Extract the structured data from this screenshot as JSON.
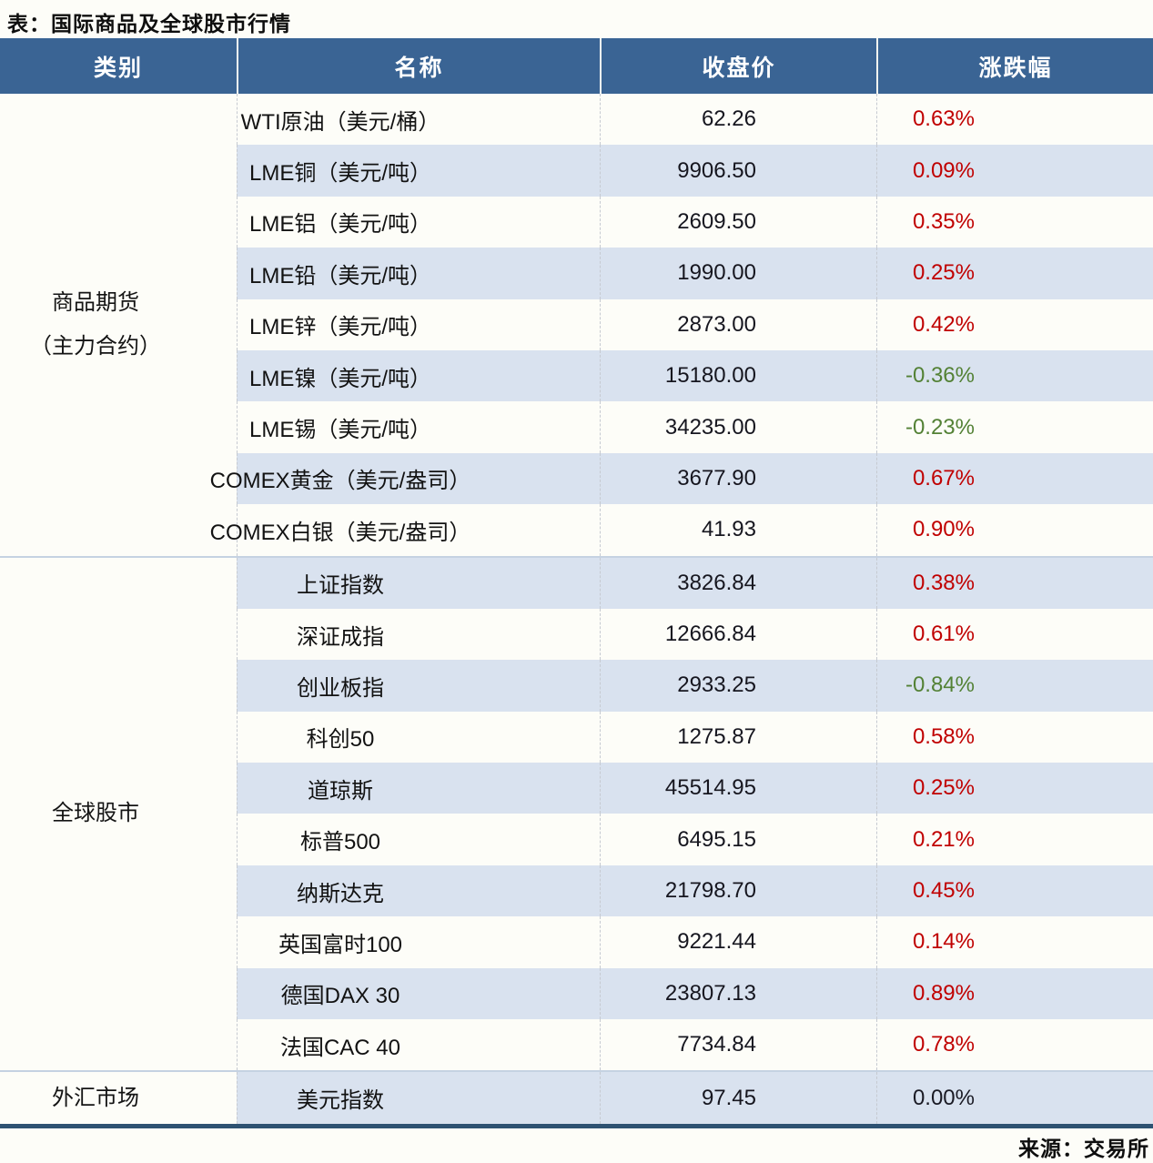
{
  "title": "表：国际商品及全球股市行情",
  "footer": {
    "source": "来源：交易所"
  },
  "colors": {
    "header_bg": "#3A6494",
    "band": "#D9E2EF",
    "up": "#C00000",
    "down": "#538135",
    "flat": "#1A1A24",
    "bottom_border": "#2E5272"
  },
  "table": {
    "columns": [
      "类别",
      "名称",
      "收盘价",
      "涨跌幅"
    ],
    "sections": [
      {
        "category_lines": [
          "商品期货",
          "（主力合约）"
        ],
        "rows": [
          {
            "name": "WTI原油（美元/桶）",
            "close": "62.26",
            "change": "0.63%",
            "direction": "up"
          },
          {
            "name": "LME铜（美元/吨）",
            "close": "9906.50",
            "change": "0.09%",
            "direction": "up"
          },
          {
            "name": "LME铝（美元/吨）",
            "close": "2609.50",
            "change": "0.35%",
            "direction": "up"
          },
          {
            "name": "LME铅（美元/吨）",
            "close": "1990.00",
            "change": "0.25%",
            "direction": "up"
          },
          {
            "name": "LME锌（美元/吨）",
            "close": "2873.00",
            "change": "0.42%",
            "direction": "up"
          },
          {
            "name": "LME镍（美元/吨）",
            "close": "15180.00",
            "change": "-0.36%",
            "direction": "down"
          },
          {
            "name": "LME锡（美元/吨）",
            "close": "34235.00",
            "change": "-0.23%",
            "direction": "down"
          },
          {
            "name": "COMEX黄金（美元/盎司）",
            "close": "3677.90",
            "change": "0.67%",
            "direction": "up"
          },
          {
            "name": "COMEX白银（美元/盎司）",
            "close": "41.93",
            "change": "0.90%",
            "direction": "up"
          }
        ]
      },
      {
        "category_lines": [
          "全球股市"
        ],
        "rows": [
          {
            "name": "上证指数",
            "close": "3826.84",
            "change": "0.38%",
            "direction": "up"
          },
          {
            "name": "深证成指",
            "close": "12666.84",
            "change": "0.61%",
            "direction": "up"
          },
          {
            "name": "创业板指",
            "close": "2933.25",
            "change": "-0.84%",
            "direction": "down"
          },
          {
            "name": "科创50",
            "close": "1275.87",
            "change": "0.58%",
            "direction": "up"
          },
          {
            "name": "道琼斯",
            "close": "45514.95",
            "change": "0.25%",
            "direction": "up"
          },
          {
            "name": "标普500",
            "close": "6495.15",
            "change": "0.21%",
            "direction": "up"
          },
          {
            "name": "纳斯达克",
            "close": "21798.70",
            "change": "0.45%",
            "direction": "up"
          },
          {
            "name": "英国富时100",
            "close": "9221.44",
            "change": "0.14%",
            "direction": "up"
          },
          {
            "name": "德国DAX 30",
            "close": "23807.13",
            "change": "0.89%",
            "direction": "up"
          },
          {
            "name": "法国CAC 40",
            "close": "7734.84",
            "change": "0.78%",
            "direction": "up"
          }
        ]
      },
      {
        "category_lines": [
          "外汇市场"
        ],
        "rows": [
          {
            "name": "美元指数",
            "close": "97.45",
            "change": "0.00%",
            "direction": "flat"
          }
        ]
      }
    ]
  }
}
